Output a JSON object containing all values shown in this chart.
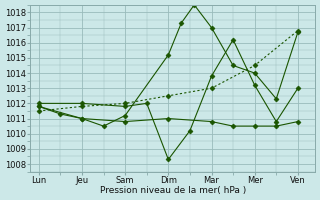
{
  "background_color": "#cce8e8",
  "grid_color": "#99bbbb",
  "line_color": "#1a5500",
  "title": "Pression niveau de la mer( hPa )",
  "ylabel_ticks": [
    1008,
    1009,
    1010,
    1011,
    1012,
    1013,
    1014,
    1015,
    1016,
    1017,
    1018
  ],
  "xlabels": [
    "Lun",
    "Jeu",
    "Sam",
    "Dim",
    "Mar",
    "Mer",
    "Ven"
  ],
  "xline_positions": [
    0,
    1,
    2,
    3,
    4,
    5,
    6
  ],
  "series": [
    {
      "x": [
        0,
        1,
        2,
        3,
        4,
        5,
        6
      ],
      "y": [
        1011.5,
        1011.8,
        1012.0,
        1012.5,
        1013.0,
        1014.5,
        1016.8
      ],
      "style": "dotted",
      "marker": "D",
      "markersize": 2.5,
      "linewidth": 0.8
    },
    {
      "x": [
        0,
        0.5,
        1,
        1.5,
        2,
        3,
        3.3,
        3.6,
        4,
        4.5,
        5,
        5.5,
        6
      ],
      "y": [
        1011.8,
        1011.3,
        1011.0,
        1010.5,
        1011.2,
        1015.2,
        1017.3,
        1018.5,
        1017.0,
        1014.5,
        1014.0,
        1012.3,
        1016.7
      ],
      "style": "solid",
      "marker": "D",
      "markersize": 2.5,
      "linewidth": 0.8
    },
    {
      "x": [
        0,
        1,
        2,
        3,
        4,
        4.5,
        5,
        5.5,
        6
      ],
      "y": [
        1011.8,
        1011.0,
        1010.8,
        1011.0,
        1010.8,
        1010.5,
        1010.5,
        1010.5,
        1010.8
      ],
      "style": "solid",
      "marker": "D",
      "markersize": 2.5,
      "linewidth": 0.8
    },
    {
      "x": [
        0,
        1,
        2,
        2.5,
        3,
        3.5,
        4,
        4.5,
        5,
        5.5,
        6
      ],
      "y": [
        1012.0,
        1012.0,
        1011.8,
        1012.0,
        1008.3,
        1010.2,
        1013.8,
        1016.2,
        1013.2,
        1010.8,
        1013.0
      ],
      "style": "solid",
      "marker": "D",
      "markersize": 2.5,
      "linewidth": 0.8
    }
  ]
}
